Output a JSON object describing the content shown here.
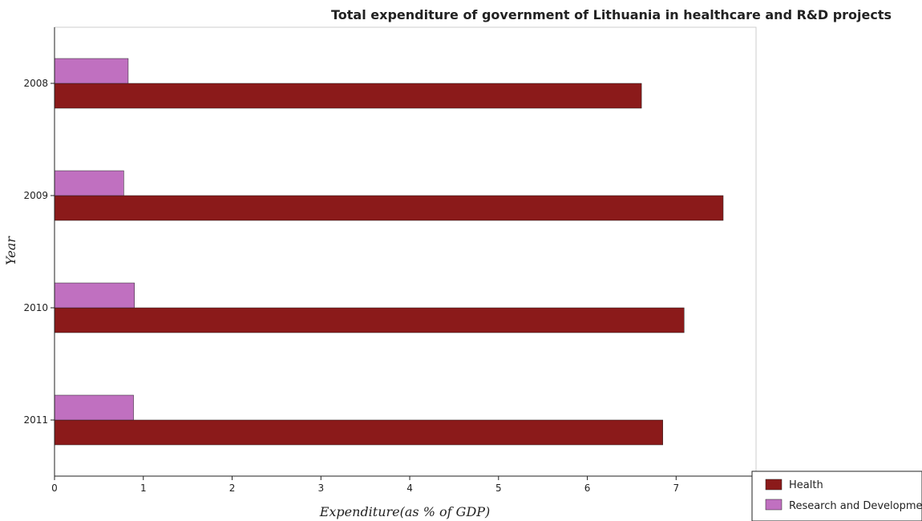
{
  "chart_data": {
    "type": "bar",
    "orientation": "horizontal",
    "title": "Total expenditure of government of Lithuania in healthcare and R&D projects",
    "xlabel": "Expenditure(as % of GDP)",
    "ylabel": "Year",
    "categories": [
      "2008",
      "2009",
      "2010",
      "2011"
    ],
    "series": [
      {
        "name": "Health",
        "color": "#8b1a1a",
        "values": [
          6.61,
          7.53,
          7.09,
          6.85
        ]
      },
      {
        "name": "Research and Development",
        "color": "#c070c0",
        "values": [
          0.83,
          0.78,
          0.9,
          0.89
        ]
      }
    ],
    "xlim": [
      0,
      7.9
    ],
    "xticks": [
      0,
      1,
      2,
      3,
      4,
      5,
      6,
      7
    ],
    "grid": false,
    "legend_position": "bottom-right"
  }
}
